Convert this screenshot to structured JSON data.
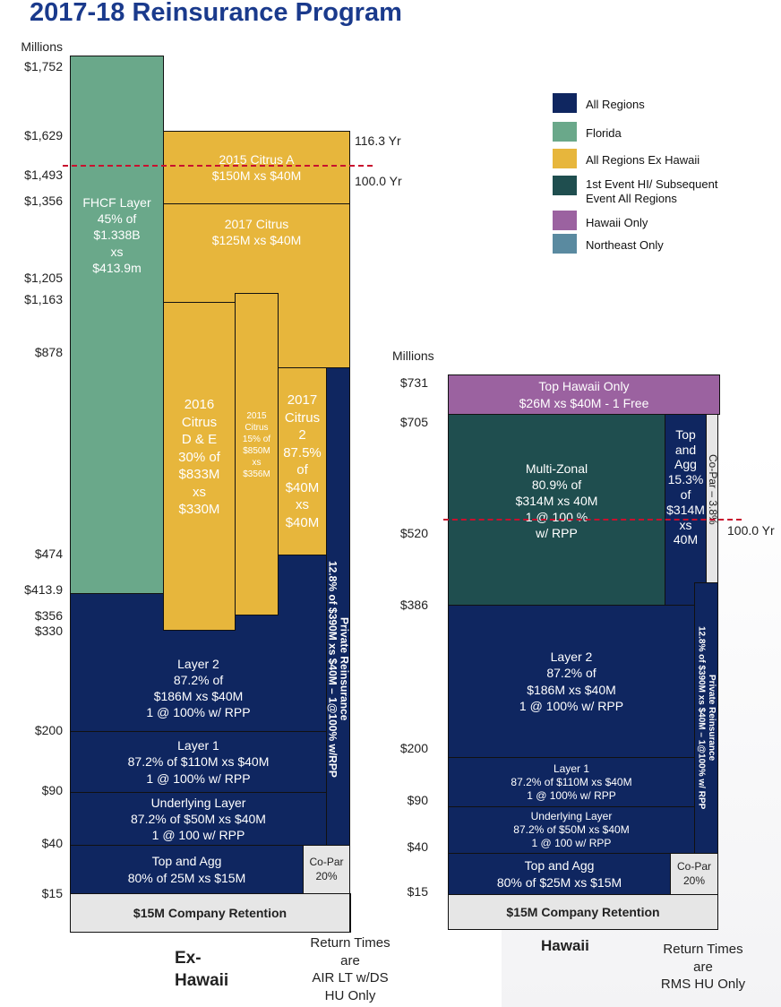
{
  "title": "2017-18 Reinsurance Program",
  "colors": {
    "all_regions": "#0f2660",
    "florida": "#6aa88a",
    "ex_hawaii": "#e7b63c",
    "first_event": "#1f4e4f",
    "hawaii_only": "#9b62a0",
    "northeast_only": "#5a8aa0",
    "retention": "#e6e6e6",
    "return_line": "#c8102e"
  },
  "legend": [
    {
      "label": "All Regions",
      "color": "#0f2660"
    },
    {
      "label": "Florida",
      "color": "#6aa88a"
    },
    {
      "label": "All Regions Ex Hawaii",
      "color": "#e7b63c"
    },
    {
      "label": "1st Event HI/ Subsequent\nEvent All Regions",
      "color": "#1f4e4f"
    },
    {
      "label": "Hawaii Only",
      "color": "#9b62a0"
    },
    {
      "label": "Northeast Only",
      "color": "#5a8aa0"
    }
  ],
  "exhawaii": {
    "unit": "Millions",
    "ticks": [
      "$1,752",
      "$1,629",
      "$1,493",
      "$1,356",
      "$1,205",
      "$1,163",
      "$878",
      "$474",
      "$413.9",
      "$356",
      "$330",
      "$200",
      "$90",
      "$40",
      "$15"
    ],
    "return_periods": [
      "116.3 Yr",
      "100.0 Yr"
    ],
    "blocks": {
      "fhcf": "FHCF Layer\n45% of\n$1.338B\nxs\n$413.9m",
      "citrus2015a": "2015 Citrus A\n$150M xs $40M",
      "citrus2017": "2017 Citrus\n$125M xs $40M",
      "citrus2016de": "2016\nCitrus\nD & E\n30% of\n$833M\nxs\n$330M",
      "citrus2015": "2015\nCitrus\n15% of\n$850M\nxs\n$356M",
      "citrus2017_2": "2017\nCitrus\n2\n87.5%\nof\n$40M\nxs\n$40M",
      "private": "Private Reinsurance\n12.8% of  $390M xs $40M – 1@100% w/RPP",
      "layer2": "Layer 2\n87.2% of\n$186M xs $40M\n1 @ 100% w/ RPP",
      "layer1": "Layer 1\n87.2% of $110M xs $40M\n1 @ 100% w/ RPP",
      "underlying": "Underlying Layer\n87.2% of $50M xs $40M\n1 @ 100 w/ RPP",
      "topagg": "Top and Agg\n80% of 25M xs $15M",
      "copar": "Co-Par\n20%",
      "retention": "$15M Company Retention"
    },
    "label": "Ex-\nHawaii",
    "note": "Return Times\nare\nAIR LT w/DS\nHU Only"
  },
  "hawaii": {
    "unit": "Millions",
    "ticks": [
      "$731",
      "$705",
      "$520",
      "$386",
      "$200",
      "$90",
      "$40",
      "$15"
    ],
    "return_period": "100.0 Yr",
    "blocks": {
      "top_hawaii": "Top Hawaii Only\n$26M xs $40M  - 1 Free",
      "multizonal": "Multi-Zonal\n80.9% of\n$314M xs 40M\n1 @ 100 %\nw/ RPP",
      "topagg153": "Top\nand\nAgg\n15.3%\nof\n$314M\nxs\n40M",
      "copar38": "Co-Par – 3.8%",
      "private": "Private Reinsurance\n12.8% of $390M xs $40M – 1@100% w/ RPP",
      "layer2": "Layer 2\n87.2% of\n$186M xs $40M\n1 @ 100% w/ RPP",
      "layer1": "Layer 1\n87.2% of $110M xs $40M\n1 @ 100% w/ RPP",
      "underlying": "Underlying Layer\n87.2% of $50M xs $40M\n1 @ 100 w/ RPP",
      "topagg": "Top and Agg\n80% of $25M xs $15M",
      "copar": "Co-Par\n20%",
      "retention": "$15M Company Retention"
    },
    "label": "Hawaii",
    "note": "Return Times\nare\nRMS HU Only"
  }
}
